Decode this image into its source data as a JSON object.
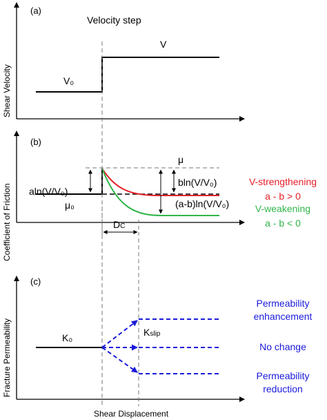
{
  "colors": {
    "axis": "#000000",
    "dashed_guide": "#777777",
    "strengthening": "#e41e26",
    "weakening": "#2fb54a",
    "permeability": "#1a1adb"
  },
  "panel_a": {
    "tag": "(a)",
    "ylabel": "Shear Velocity",
    "step_label": "Velocity step",
    "v0_label": "V₀",
    "v_label": "V"
  },
  "panel_b": {
    "tag": "(b)",
    "ylabel": "Coefficient of Friction",
    "mu_label": "μ",
    "mu0_label": "μ₀",
    "aln_label": "aln(V/V₀)",
    "bln_label": "bln(V/V₀)",
    "ab_label": "(a-b)ln(V/V₀)",
    "dc_label": "D",
    "dc_sub": "C",
    "strengthening_title": "V-strengthening",
    "strengthening_cond": "a - b > 0",
    "weakening_title": "V-weakening",
    "weakening_cond": "a - b < 0"
  },
  "panel_c": {
    "tag": "(c)",
    "ylabel": "Fracture Permeability",
    "k0_label": "K₀",
    "kslip_label": "K",
    "kslip_sub": "slip",
    "enhancement_line1": "Permeability",
    "enhancement_line2": "enhancement",
    "nochange_label": "No change",
    "reduction_line1": "Permeability",
    "reduction_line2": "reduction"
  },
  "xlabel": "Shear Displacement"
}
